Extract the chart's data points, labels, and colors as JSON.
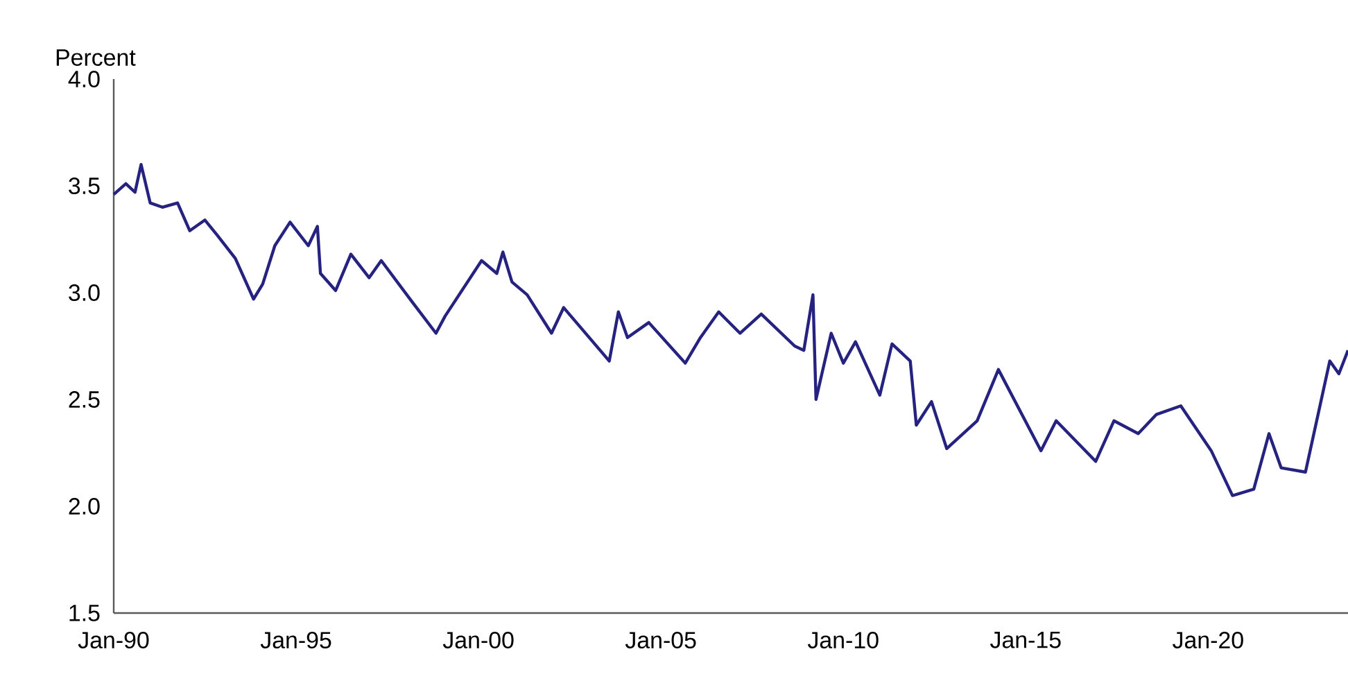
{
  "chart_data": {
    "type": "line",
    "ylabel": "Percent",
    "x": [
      "1990-01",
      "1990-05",
      "1990-08",
      "1990-10",
      "1991-01",
      "1991-05",
      "1991-10",
      "1992-02",
      "1992-07",
      "1992-11",
      "1993-05",
      "1993-11",
      "1994-02",
      "1994-06",
      "1994-11",
      "1995-05",
      "1995-08",
      "1995-09",
      "1996-02",
      "1996-07",
      "1997-01",
      "1997-05",
      "1998-03",
      "1998-11",
      "1999-02",
      "2000-02",
      "2000-07",
      "2000-09",
      "2000-12",
      "2001-05",
      "2002-01",
      "2002-05",
      "2002-11",
      "2003-08",
      "2003-11",
      "2004-02",
      "2004-09",
      "2005-09",
      "2006-02",
      "2006-08",
      "2007-03",
      "2007-10",
      "2008-09",
      "2008-12",
      "2009-03",
      "2009-04",
      "2009-09",
      "2010-01",
      "2010-05",
      "2011-01",
      "2011-05",
      "2011-11",
      "2012-01",
      "2012-06",
      "2012-11",
      "2013-09",
      "2014-04",
      "2015-06",
      "2015-11",
      "2016-12",
      "2017-06",
      "2018-02",
      "2018-08",
      "2019-04",
      "2020-02",
      "2020-09",
      "2021-04",
      "2021-09",
      "2022-01",
      "2022-09",
      "2023-05",
      "2023-08",
      "2023-11"
    ],
    "series": [
      {
        "color": "#25237f",
        "values": [
          3.46,
          3.51,
          3.47,
          3.6,
          3.42,
          3.4,
          3.42,
          3.29,
          3.34,
          3.27,
          3.16,
          2.97,
          3.04,
          3.22,
          3.33,
          3.22,
          3.31,
          3.09,
          3.01,
          3.18,
          3.07,
          3.15,
          2.96,
          2.81,
          2.89,
          3.15,
          3.09,
          3.19,
          3.05,
          2.99,
          2.81,
          2.93,
          2.83,
          2.68,
          2.91,
          2.79,
          2.86,
          2.67,
          2.79,
          2.91,
          2.81,
          2.9,
          2.75,
          2.73,
          2.99,
          2.5,
          2.81,
          2.67,
          2.77,
          2.52,
          2.76,
          2.68,
          2.38,
          2.49,
          2.27,
          2.4,
          2.64,
          2.26,
          2.4,
          2.21,
          2.4,
          2.34,
          2.43,
          2.47,
          2.26,
          2.05,
          2.08,
          2.34,
          2.18,
          2.16,
          2.68,
          2.62,
          2.73
        ]
      }
    ],
    "xlim": [
      "1990-01",
      "2023-11"
    ],
    "xticks": [
      {
        "value": "1990-01",
        "label": "Jan-90"
      },
      {
        "value": "1995-01",
        "label": "Jan-95"
      },
      {
        "value": "2000-01",
        "label": "Jan-00"
      },
      {
        "value": "2005-01",
        "label": "Jan-05"
      },
      {
        "value": "2010-01",
        "label": "Jan-10"
      },
      {
        "value": "2015-01",
        "label": "Jan-15"
      },
      {
        "value": "2020-01",
        "label": "Jan-20"
      }
    ],
    "ylim": [
      1.5,
      4.0
    ],
    "yticks": [
      {
        "value": 1.5,
        "label": "1.5"
      },
      {
        "value": 2.0,
        "label": "2.0"
      },
      {
        "value": 2.5,
        "label": "2.5"
      },
      {
        "value": 3.0,
        "label": "3.0"
      },
      {
        "value": 3.5,
        "label": "3.5"
      },
      {
        "value": 4.0,
        "label": "4.0"
      }
    ]
  }
}
